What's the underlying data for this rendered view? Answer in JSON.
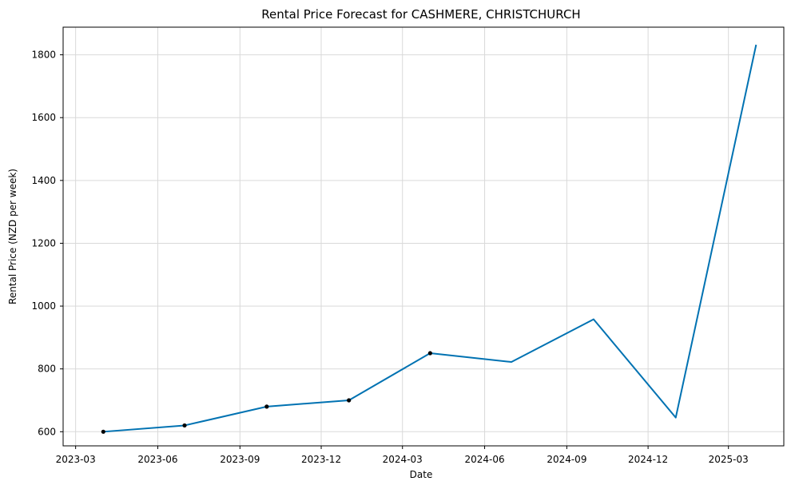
{
  "chart_data": {
    "type": "line",
    "title": "Rental Price Forecast for CASHMERE, CHRISTCHURCH",
    "xlabel": "Date",
    "ylabel": "Rental Price (NZD per week)",
    "x_ticks": [
      "2023-03",
      "2023-06",
      "2023-09",
      "2023-12",
      "2024-03",
      "2024-06",
      "2024-09",
      "2024-12",
      "2025-03"
    ],
    "y_ticks": [
      600,
      800,
      1000,
      1200,
      1400,
      1600,
      1800
    ],
    "xlim": [
      "2023-02-15",
      "2025-05-02"
    ],
    "ylim": [
      555,
      1888
    ],
    "grid": true,
    "line_color": "#0072B2",
    "point_color": "#000000",
    "series": [
      {
        "values": [
          {
            "x": "2023-04-01",
            "y": 600
          },
          {
            "x": "2023-07-01",
            "y": 620
          },
          {
            "x": "2023-10-01",
            "y": 680
          },
          {
            "x": "2024-01-01",
            "y": 700
          },
          {
            "x": "2024-04-01",
            "y": 850
          },
          {
            "x": "2024-07-01",
            "y": 822
          },
          {
            "x": "2024-10-01",
            "y": 958
          },
          {
            "x": "2025-01-01",
            "y": 645
          },
          {
            "x": "2025-04-01",
            "y": 1832
          }
        ]
      }
    ],
    "observed_points": [
      {
        "x": "2023-04-01",
        "y": 600
      },
      {
        "x": "2023-07-01",
        "y": 620
      },
      {
        "x": "2023-10-01",
        "y": 680
      },
      {
        "x": "2024-01-01",
        "y": 700
      },
      {
        "x": "2024-04-01",
        "y": 850
      }
    ]
  }
}
